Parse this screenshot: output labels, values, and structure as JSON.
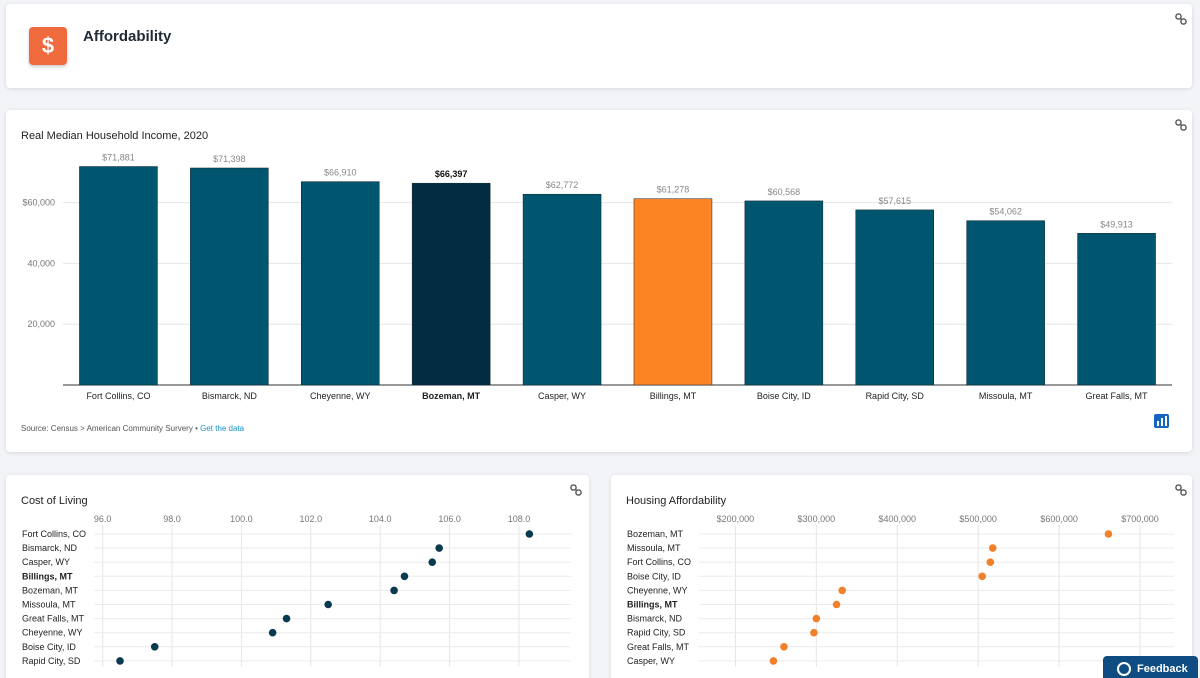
{
  "header": {
    "icon": "dollar-icon",
    "icon_glyph": "$",
    "title": "Affordability",
    "accent": "#ef6a3c"
  },
  "bar_chart": {
    "source_prefix": "Source: Census > American Community Survery • ",
    "source_link": "Get the data"
  },
  "feedback": {
    "label": "Feedback"
  },
  "colors": {
    "bar": "#00566e",
    "bar_highlight": "#022c42",
    "bar_compare": "#fd8423",
    "dot_cost": "#0a3a4f",
    "dot_housing": "#f2802a"
  },
  "chart_data": [
    {
      "type": "bar",
      "title": "Real Median Household Income, 2020",
      "categories": [
        "Fort Collins, CO",
        "Bismarck, ND",
        "Cheyenne, WY",
        "Bozeman, MT",
        "Casper, WY",
        "Billings, MT",
        "Boise City, ID",
        "Rapid City, SD",
        "Missoula, MT",
        "Great Falls, MT"
      ],
      "values": [
        71881,
        71398,
        66910,
        66397,
        62772,
        61278,
        60568,
        57615,
        54062,
        49913
      ],
      "value_labels": [
        "$71,881",
        "$71,398",
        "$66,910",
        "$66,397",
        "$62,772",
        "$61,278",
        "$60,568",
        "$57,615",
        "$54,062",
        "$49,913"
      ],
      "highlight": "Bozeman, MT",
      "compare": "Billings, MT",
      "ylim": [
        0,
        76000
      ],
      "yticks": [
        20000,
        40000,
        60000
      ],
      "ytick_labels": [
        "20,000",
        "40,000",
        "$60,000"
      ],
      "grid": true
    },
    {
      "type": "scatter",
      "title": "Cost of Living",
      "categories": [
        "Fort Collins, CO",
        "Bismarck, ND",
        "Casper, WY",
        "Billings, MT",
        "Bozeman, MT",
        "Missoula, MT",
        "Great Falls, MT",
        "Cheyenne, WY",
        "Boise City, ID",
        "Rapid City, SD"
      ],
      "values": [
        108.3,
        105.7,
        105.5,
        104.7,
        104.4,
        102.5,
        101.3,
        100.9,
        97.5,
        96.5
      ],
      "bold": "Billings, MT",
      "xlim": [
        95.75,
        109.5
      ],
      "xticks": [
        96,
        98,
        100,
        102,
        104,
        106,
        108
      ],
      "xtick_labels": [
        "96.0",
        "98.0",
        "100.0",
        "102.0",
        "104.0",
        "106.0",
        "108.0"
      ],
      "grid": true
    },
    {
      "type": "scatter",
      "title": "Housing Affordability",
      "categories": [
        "Bozeman, MT",
        "Missoula, MT",
        "Fort Collins, CO",
        "Boise City, ID",
        "Cheyenne, WY",
        "Billings, MT",
        "Bismarck, ND",
        "Rapid City, SD",
        "Great Falls, MT",
        "Casper, WY"
      ],
      "values": [
        661000,
        518000,
        515000,
        505000,
        332000,
        325000,
        300000,
        297000,
        260000,
        247000
      ],
      "bold": "Billings, MT",
      "xlim": [
        155000,
        742000
      ],
      "xticks": [
        200000,
        300000,
        400000,
        500000,
        600000,
        700000
      ],
      "xtick_labels": [
        "$200,000",
        "$300,000",
        "$400,000",
        "$500,000",
        "$600,000",
        "$700,000"
      ],
      "grid": true
    }
  ]
}
